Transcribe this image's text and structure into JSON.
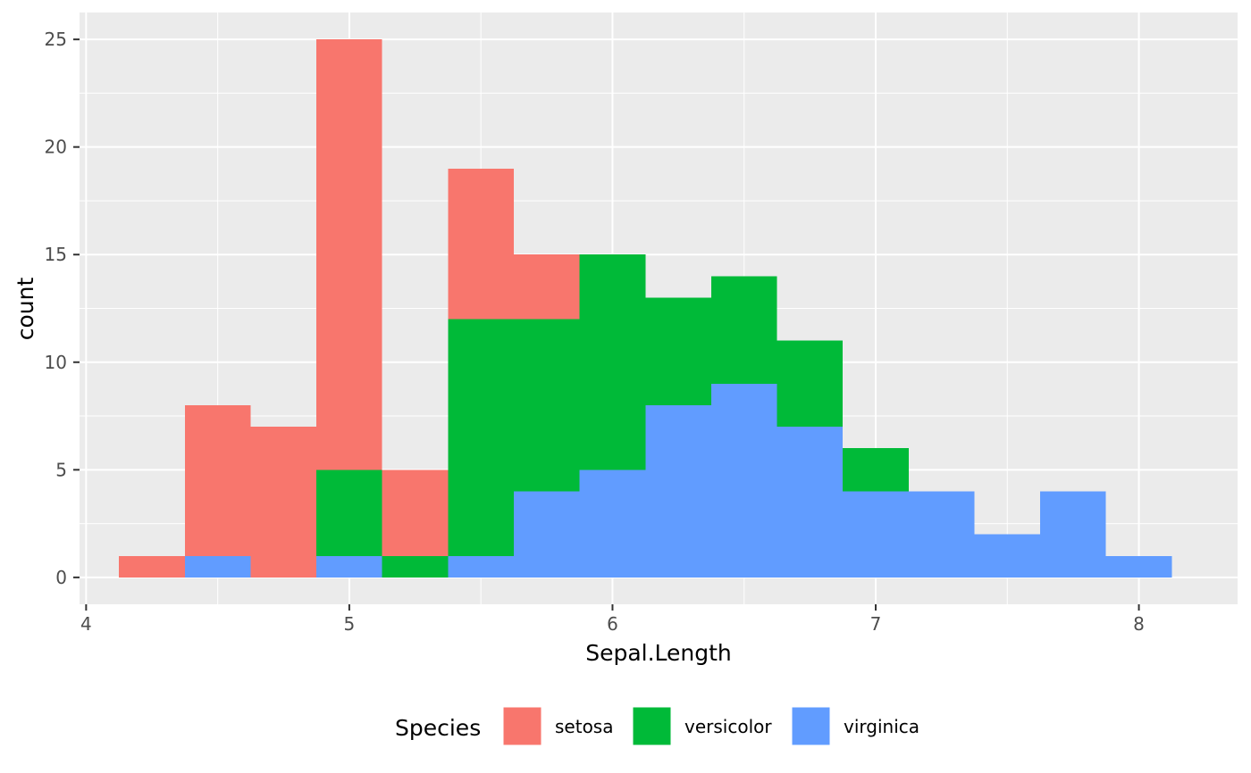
{
  "chart_data": {
    "type": "bar",
    "subtype": "stacked-histogram",
    "title": "",
    "xlabel": "Sepal.Length",
    "ylabel": "count",
    "xlim": [
      3.975,
      8.375
    ],
    "ylim": [
      -1.25,
      26.25
    ],
    "x_ticks": [
      4,
      5,
      6,
      7,
      8
    ],
    "y_ticks": [
      0,
      5,
      10,
      15,
      20,
      25
    ],
    "grid": true,
    "bin_edges": [
      4.125,
      4.375,
      4.625,
      4.875,
      5.125,
      5.375,
      5.625,
      5.875,
      6.125,
      6.375,
      6.625,
      6.875,
      7.125,
      7.375,
      7.625,
      7.875,
      8.125
    ],
    "stack_order": [
      "virginica",
      "versicolor",
      "setosa"
    ],
    "series": [
      {
        "name": "setosa",
        "color": "#F8766D",
        "values": [
          1,
          7,
          7,
          20,
          4,
          7,
          3,
          0,
          0,
          0,
          0,
          0,
          0,
          0,
          0,
          0
        ]
      },
      {
        "name": "versicolor",
        "color": "#00BA38",
        "values": [
          0,
          0,
          0,
          4,
          1,
          11,
          8,
          10,
          5,
          5,
          4,
          2,
          0,
          0,
          0,
          0
        ]
      },
      {
        "name": "virginica",
        "color": "#619CFF",
        "values": [
          0,
          1,
          0,
          1,
          0,
          1,
          4,
          5,
          8,
          9,
          7,
          4,
          4,
          2,
          4,
          1
        ]
      }
    ],
    "legend": {
      "title": "Species",
      "position": "bottom",
      "items": [
        "setosa",
        "versicolor",
        "virginica"
      ]
    }
  },
  "colors": {
    "panel_background": "#EBEBEB",
    "grid_major": "#FFFFFF",
    "tick_text": "#4D4D4D"
  }
}
